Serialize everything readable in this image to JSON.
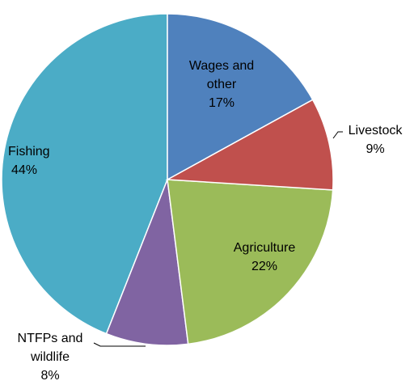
{
  "chart_data": {
    "type": "pie",
    "categories": [
      "Wages and other",
      "Livestock",
      "Agriculture",
      "NTFPs and wildlife",
      "Fishing"
    ],
    "values": [
      17,
      9,
      22,
      8,
      44
    ],
    "value_labels": [
      "17%",
      "9%",
      "22%",
      "8%",
      "44%"
    ],
    "colors": [
      "#4f81bd",
      "#c0504d",
      "#9bbb59",
      "#8064a2",
      "#4bacc6"
    ],
    "start_angle": 90,
    "direction": "clockwise"
  }
}
